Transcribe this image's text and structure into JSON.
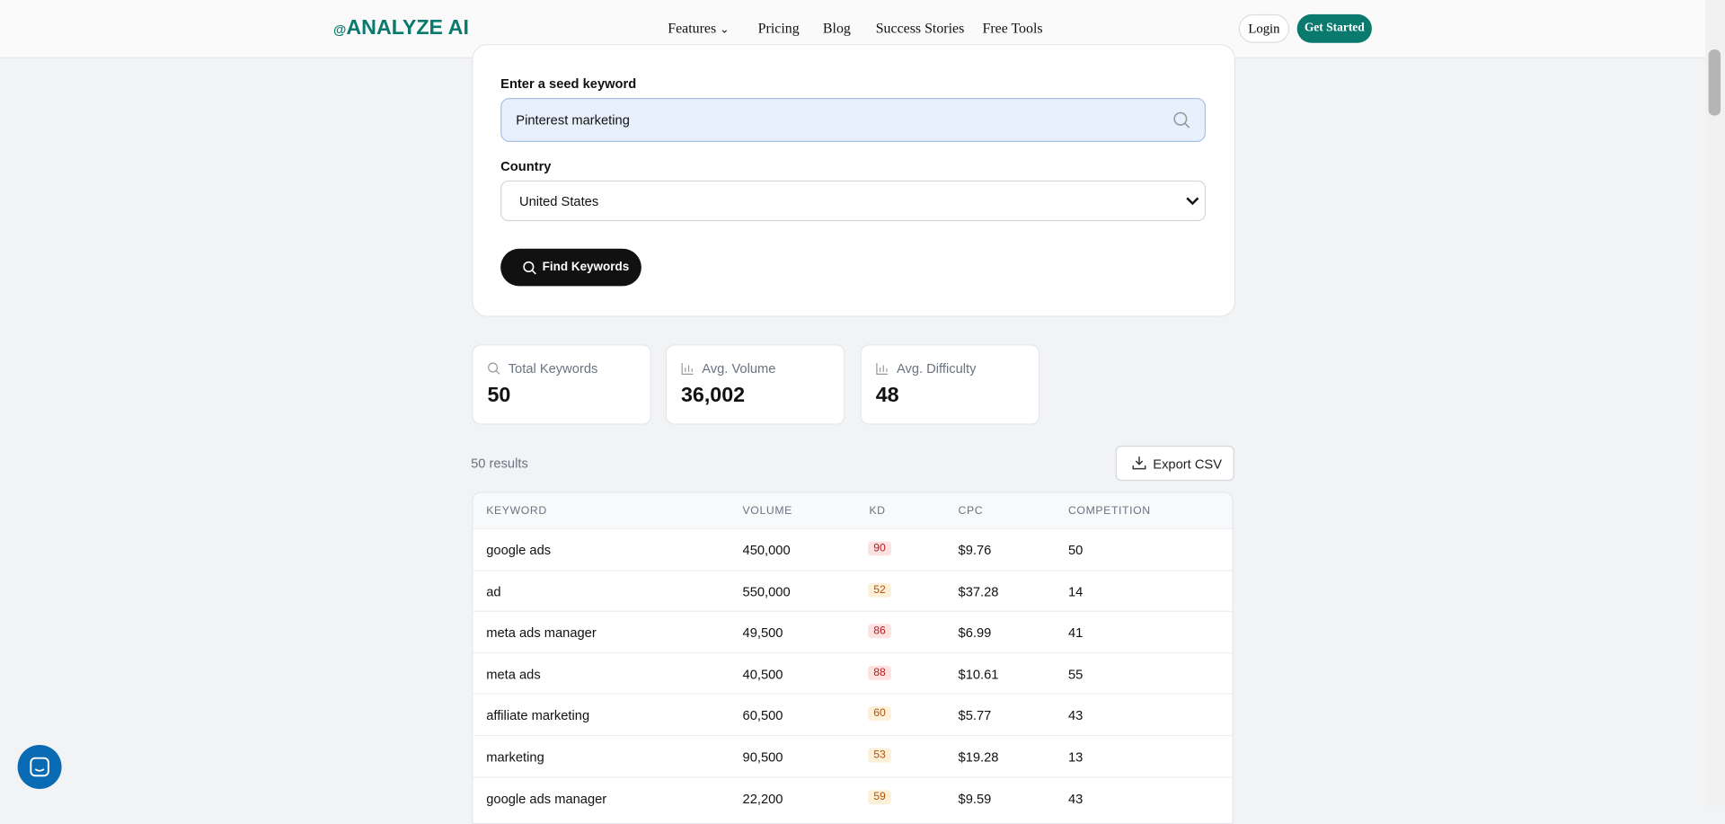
{
  "header": {
    "logo": "ANALYZE AI",
    "nav": [
      "Features",
      "Pricing",
      "Blog",
      "Success Stories",
      "Free Tools"
    ],
    "login": "Login",
    "cta": "Get Started"
  },
  "form": {
    "keyword_label": "Enter a seed keyword",
    "keyword_value": "Pinterest marketing",
    "country_label": "Country",
    "country_value": "United States",
    "button": "Find Keywords"
  },
  "stats": [
    {
      "label": "Total Keywords",
      "value": "50"
    },
    {
      "label": "Avg. Volume",
      "value": "36,002"
    },
    {
      "label": "Avg. Difficulty",
      "value": "48"
    }
  ],
  "results": {
    "count": "50 results",
    "export": "Export CSV"
  },
  "table": {
    "columns": [
      "KEYWORD",
      "VOLUME",
      "KD",
      "CPC",
      "COMPETITION"
    ],
    "rows": [
      [
        "google ads",
        "450,000",
        "90",
        "$9.76",
        "50"
      ],
      [
        "ad",
        "550,000",
        "52",
        "$37.28",
        "14"
      ],
      [
        "meta ads manager",
        "49,500",
        "86",
        "$6.99",
        "41"
      ],
      [
        "meta ads",
        "40,500",
        "88",
        "$10.61",
        "55"
      ],
      [
        "affiliate marketing",
        "60,500",
        "60",
        "$5.77",
        "43"
      ],
      [
        "marketing",
        "90,500",
        "53",
        "$19.28",
        "13"
      ],
      [
        "google ads manager",
        "22,200",
        "59",
        "$9.59",
        "43"
      ]
    ]
  }
}
